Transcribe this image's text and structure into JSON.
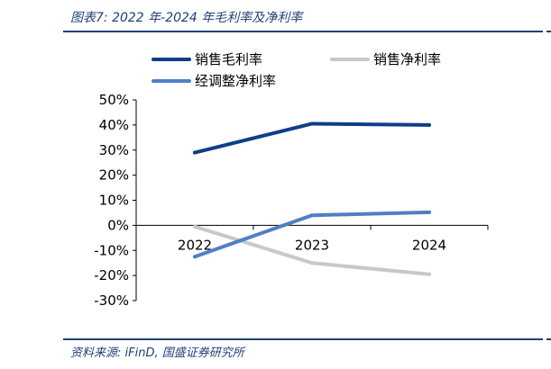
{
  "figure_title": "图表7:  2022 年-2024 年毛利率及净利率",
  "source": "资料来源:  iFinD,  国盛证券研究所",
  "chart_data": {
    "type": "line",
    "categories": [
      "2022",
      "2023",
      "2024"
    ],
    "series": [
      {
        "name": "销售毛利率",
        "values": [
          29.0,
          40.5,
          40.0
        ],
        "color": "#0e3f86"
      },
      {
        "name": "销售净利率",
        "values": [
          -0.5,
          -15.0,
          -19.5
        ],
        "color": "#c8c8c8"
      },
      {
        "name": "经调整净利率",
        "values": [
          -12.5,
          4.0,
          5.2
        ],
        "color": "#4f7fc4"
      }
    ],
    "ylim": [
      -30,
      50
    ],
    "yticks": [
      "50%",
      "40%",
      "30%",
      "20%",
      "10%",
      "0%",
      "-10%",
      "-20%",
      "-30%"
    ],
    "ytick_values": [
      50,
      40,
      30,
      20,
      10,
      0,
      -10,
      -20,
      -30
    ],
    "grid": false,
    "legend_position": "top"
  }
}
